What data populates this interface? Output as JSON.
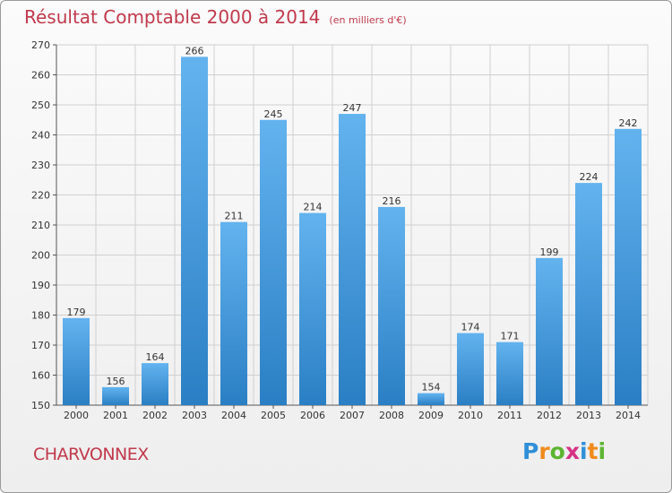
{
  "title": "Résultat Comptable 2000 à 2014",
  "unit": "(en milliers d'€)",
  "commune": "CHARVONNEX",
  "logo": {
    "text": "Proxiti",
    "letters": [
      "P",
      "r",
      "o",
      "x",
      "i",
      "t",
      "i"
    ],
    "colors": [
      "#2f8fd8",
      "#f08a1c",
      "#5cb531",
      "#d63384",
      "#2f8fd8",
      "#f08a1c",
      "#5cb531"
    ]
  },
  "colors": {
    "bar_light": "#63b3ef",
    "bar_dark": "#2a7fc4",
    "grid": "#d0d0d0",
    "title": "#c0394b"
  },
  "chart_data": {
    "type": "bar",
    "title": "Résultat Comptable 2000 à 2014",
    "subtitle": "(en milliers d'€)",
    "categories": [
      "2000",
      "2001",
      "2002",
      "2003",
      "2004",
      "2005",
      "2006",
      "2007",
      "2008",
      "2009",
      "2010",
      "2011",
      "2012",
      "2013",
      "2014"
    ],
    "values": [
      179,
      156,
      164,
      266,
      211,
      245,
      214,
      247,
      216,
      154,
      174,
      171,
      199,
      224,
      242
    ],
    "ylim": [
      150,
      270
    ],
    "yticks": [
      150,
      160,
      170,
      180,
      190,
      200,
      210,
      220,
      230,
      240,
      250,
      260,
      270
    ],
    "grid": true,
    "data_labels": true
  }
}
